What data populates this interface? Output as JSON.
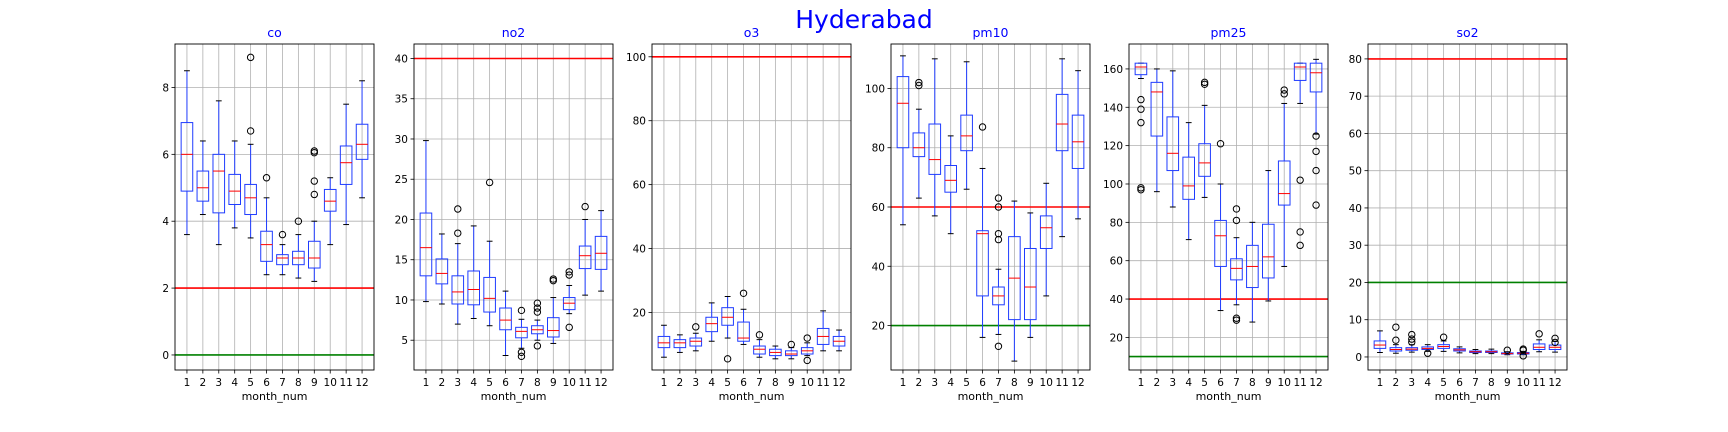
{
  "figure": {
    "suptitle": "Hyderabad",
    "suptitle_color": "#0000ff",
    "title_color": "#0000ff",
    "box_color": "#1f3cff",
    "median_color": "#ff0000",
    "whisker_color": "#1f3cff",
    "grid": true
  },
  "chart_data": [
    {
      "type": "box",
      "title": "co",
      "xlabel": "month_num",
      "ylabel": "",
      "categories": [
        "1",
        "2",
        "3",
        "4",
        "5",
        "6",
        "7",
        "8",
        "9",
        "10",
        "11",
        "12"
      ],
      "ylim": [
        -0.45,
        9.3
      ],
      "yticks": [
        0,
        2,
        4,
        6,
        8
      ],
      "hlines": [
        {
          "y": 2,
          "color": "#ff0000"
        },
        {
          "y": 0,
          "color": "#008000"
        }
      ],
      "boxes": [
        {
          "whislo": 3.6,
          "q1": 4.9,
          "med": 6.0,
          "q3": 6.95,
          "whishi": 8.5,
          "fliers": []
        },
        {
          "whislo": 4.2,
          "q1": 4.6,
          "med": 5.0,
          "q3": 5.5,
          "whishi": 6.4,
          "fliers": []
        },
        {
          "whislo": 3.3,
          "q1": 4.25,
          "med": 5.5,
          "q3": 6.0,
          "whishi": 7.6,
          "fliers": []
        },
        {
          "whislo": 3.8,
          "q1": 4.5,
          "med": 4.9,
          "q3": 5.4,
          "whishi": 6.4,
          "fliers": []
        },
        {
          "whislo": 3.5,
          "q1": 4.2,
          "med": 4.7,
          "q3": 5.1,
          "whishi": 6.3,
          "fliers": [
            8.9,
            6.7
          ]
        },
        {
          "whislo": 2.4,
          "q1": 2.8,
          "med": 3.3,
          "q3": 3.7,
          "whishi": 4.7,
          "fliers": [
            5.3
          ]
        },
        {
          "whislo": 2.4,
          "q1": 2.7,
          "med": 2.9,
          "q3": 3.0,
          "whishi": 3.3,
          "fliers": [
            3.6
          ]
        },
        {
          "whislo": 2.3,
          "q1": 2.7,
          "med": 2.9,
          "q3": 3.1,
          "whishi": 3.6,
          "fliers": [
            4.0
          ]
        },
        {
          "whislo": 2.2,
          "q1": 2.6,
          "med": 2.9,
          "q3": 3.4,
          "whishi": 4.0,
          "fliers": [
            6.1,
            6.05,
            5.2,
            4.8
          ]
        },
        {
          "whislo": 3.3,
          "q1": 4.3,
          "med": 4.6,
          "q3": 4.95,
          "whishi": 5.3,
          "fliers": []
        },
        {
          "whislo": 3.9,
          "q1": 5.1,
          "med": 5.75,
          "q3": 6.25,
          "whishi": 7.5,
          "fliers": []
        },
        {
          "whislo": 4.7,
          "q1": 5.85,
          "med": 6.3,
          "q3": 6.9,
          "whishi": 8.2,
          "fliers": []
        }
      ]
    },
    {
      "type": "box",
      "title": "no2",
      "xlabel": "month_num",
      "ylabel": "",
      "categories": [
        "1",
        "2",
        "3",
        "4",
        "5",
        "6",
        "7",
        "8",
        "9",
        "10",
        "11",
        "12"
      ],
      "ylim": [
        1.3,
        41.8
      ],
      "yticks": [
        5,
        10,
        15,
        20,
        25,
        30,
        35,
        40
      ],
      "hlines": [
        {
          "y": 40,
          "color": "#ff0000"
        }
      ],
      "boxes": [
        {
          "whislo": 9.8,
          "q1": 13.0,
          "med": 16.5,
          "q3": 20.8,
          "whishi": 29.8,
          "fliers": []
        },
        {
          "whislo": 9.5,
          "q1": 12.0,
          "med": 13.3,
          "q3": 15.1,
          "whishi": 18.2,
          "fliers": []
        },
        {
          "whislo": 7.0,
          "q1": 9.5,
          "med": 11.0,
          "q3": 13.0,
          "whishi": 17.0,
          "fliers": [
            21.3,
            18.3
          ]
        },
        {
          "whislo": 7.7,
          "q1": 9.4,
          "med": 11.3,
          "q3": 13.6,
          "whishi": 19.2,
          "fliers": []
        },
        {
          "whislo": 6.8,
          "q1": 8.5,
          "med": 10.2,
          "q3": 12.8,
          "whishi": 17.3,
          "fliers": [
            24.6
          ]
        },
        {
          "whislo": 3.1,
          "q1": 6.3,
          "med": 7.5,
          "q3": 9.0,
          "whishi": 11.1,
          "fliers": []
        },
        {
          "whislo": 4.0,
          "q1": 5.3,
          "med": 6.1,
          "q3": 6.6,
          "whishi": 7.6,
          "fliers": [
            8.7,
            3.5,
            3.0
          ]
        },
        {
          "whislo": 5.0,
          "q1": 5.8,
          "med": 6.3,
          "q3": 6.8,
          "whishi": 7.5,
          "fliers": [
            9.6,
            9.0,
            8.5,
            4.3
          ]
        },
        {
          "whislo": 4.6,
          "q1": 5.4,
          "med": 6.2,
          "q3": 7.8,
          "whishi": 10.3,
          "fliers": [
            12.6,
            12.4
          ]
        },
        {
          "whislo": 8.3,
          "q1": 8.8,
          "med": 9.6,
          "q3": 10.3,
          "whishi": 11.8,
          "fliers": [
            13.5,
            13.1,
            6.6
          ]
        },
        {
          "whislo": 10.6,
          "q1": 13.9,
          "med": 15.5,
          "q3": 16.7,
          "whishi": 20.0,
          "fliers": [
            21.6
          ]
        },
        {
          "whislo": 11.1,
          "q1": 13.8,
          "med": 15.8,
          "q3": 17.9,
          "whishi": 21.1,
          "fliers": []
        }
      ]
    },
    {
      "type": "box",
      "title": "o3",
      "xlabel": "month_num",
      "ylabel": "",
      "categories": [
        "1",
        "2",
        "3",
        "4",
        "5",
        "6",
        "7",
        "8",
        "9",
        "10",
        "11",
        "12"
      ],
      "ylim": [
        2.0,
        104.0
      ],
      "yticks": [
        20,
        40,
        60,
        80,
        100
      ],
      "hlines": [
        {
          "y": 100,
          "color": "#ff0000"
        }
      ],
      "boxes": [
        {
          "whislo": 6.0,
          "q1": 9.0,
          "med": 10.5,
          "q3": 12.5,
          "whishi": 16.0,
          "fliers": []
        },
        {
          "whislo": 7.5,
          "q1": 9.0,
          "med": 10.5,
          "q3": 11.5,
          "whishi": 13.0,
          "fliers": []
        },
        {
          "whislo": 8.0,
          "q1": 9.5,
          "med": 11.0,
          "q3": 12.0,
          "whishi": 13.5,
          "fliers": [
            15.5
          ]
        },
        {
          "whislo": 11.0,
          "q1": 14.0,
          "med": 16.5,
          "q3": 18.5,
          "whishi": 23.0,
          "fliers": []
        },
        {
          "whislo": 12.0,
          "q1": 16.0,
          "med": 18.5,
          "q3": 21.5,
          "whishi": 25.0,
          "fliers": [
            5.5
          ]
        },
        {
          "whislo": 10.0,
          "q1": 11.0,
          "med": 12.0,
          "q3": 17.0,
          "whishi": 21.0,
          "fliers": [
            26.0
          ]
        },
        {
          "whislo": 6.0,
          "q1": 7.0,
          "med": 8.5,
          "q3": 9.5,
          "whishi": 11.5,
          "fliers": [
            13.0
          ]
        },
        {
          "whislo": 5.5,
          "q1": 6.5,
          "med": 7.5,
          "q3": 8.5,
          "whishi": 9.5,
          "fliers": []
        },
        {
          "whislo": 5.5,
          "q1": 6.5,
          "med": 7.0,
          "q3": 8.0,
          "whishi": 9.0,
          "fliers": [
            10.0
          ]
        },
        {
          "whislo": 6.5,
          "q1": 7.0,
          "med": 8.0,
          "q3": 9.0,
          "whishi": 10.5,
          "fliers": [
            12.0,
            5.0
          ]
        },
        {
          "whislo": 8.0,
          "q1": 10.0,
          "med": 12.5,
          "q3": 15.0,
          "whishi": 20.5,
          "fliers": []
        },
        {
          "whislo": 8.0,
          "q1": 9.5,
          "med": 11.0,
          "q3": 12.5,
          "whishi": 14.5,
          "fliers": []
        }
      ]
    },
    {
      "type": "box",
      "title": "pm10",
      "xlabel": "month_num",
      "ylabel": "",
      "categories": [
        "1",
        "2",
        "3",
        "4",
        "5",
        "6",
        "7",
        "8",
        "9",
        "10",
        "11",
        "12"
      ],
      "ylim": [
        5.0,
        115.0
      ],
      "yticks": [
        20,
        40,
        60,
        80,
        100
      ],
      "hlines": [
        {
          "y": 60,
          "color": "#ff0000"
        },
        {
          "y": 20,
          "color": "#008000"
        }
      ],
      "boxes": [
        {
          "whislo": 54,
          "q1": 80,
          "med": 95,
          "q3": 104,
          "whishi": 111,
          "fliers": []
        },
        {
          "whislo": 63,
          "q1": 77,
          "med": 80,
          "q3": 85,
          "whishi": 93,
          "fliers": [
            102,
            101
          ]
        },
        {
          "whislo": 57,
          "q1": 71,
          "med": 76,
          "q3": 88,
          "whishi": 110,
          "fliers": []
        },
        {
          "whislo": 51,
          "q1": 65,
          "med": 69,
          "q3": 74,
          "whishi": 84,
          "fliers": []
        },
        {
          "whislo": 66,
          "q1": 79,
          "med": 84,
          "q3": 91,
          "whishi": 109,
          "fliers": []
        },
        {
          "whislo": 16,
          "q1": 30,
          "med": 51,
          "q3": 52,
          "whishi": 73,
          "fliers": [
            87
          ]
        },
        {
          "whislo": 17,
          "q1": 27,
          "med": 30,
          "q3": 33,
          "whishi": 39,
          "fliers": [
            63,
            60,
            51,
            49,
            13
          ]
        },
        {
          "whislo": 8,
          "q1": 22,
          "med": 36,
          "q3": 50,
          "whishi": 62,
          "fliers": []
        },
        {
          "whislo": 16,
          "q1": 22,
          "med": 33,
          "q3": 46,
          "whishi": 58,
          "fliers": []
        },
        {
          "whislo": 30,
          "q1": 46,
          "med": 53,
          "q3": 57,
          "whishi": 68,
          "fliers": []
        },
        {
          "whislo": 50,
          "q1": 79,
          "med": 88,
          "q3": 98,
          "whishi": 110,
          "fliers": []
        },
        {
          "whislo": 56,
          "q1": 73,
          "med": 82,
          "q3": 91,
          "whishi": 106,
          "fliers": []
        }
      ]
    },
    {
      "type": "box",
      "title": "pm25",
      "xlabel": "month_num",
      "ylabel": "",
      "categories": [
        "1",
        "2",
        "3",
        "4",
        "5",
        "6",
        "7",
        "8",
        "9",
        "10",
        "11",
        "12"
      ],
      "ylim": [
        3.0,
        173.0
      ],
      "yticks": [
        20,
        40,
        60,
        80,
        100,
        120,
        140,
        160
      ],
      "hlines": [
        {
          "y": 40,
          "color": "#ff0000"
        },
        {
          "y": 10,
          "color": "#008000"
        }
      ],
      "boxes": [
        {
          "whislo": 155,
          "q1": 157,
          "med": 161,
          "q3": 163,
          "whishi": 163,
          "fliers": [
            144,
            139,
            132,
            98,
            97
          ]
        },
        {
          "whislo": 96,
          "q1": 125,
          "med": 148,
          "q3": 153,
          "whishi": 160,
          "fliers": []
        },
        {
          "whislo": 88,
          "q1": 107,
          "med": 116,
          "q3": 135,
          "whishi": 159,
          "fliers": []
        },
        {
          "whislo": 71,
          "q1": 92,
          "med": 99,
          "q3": 114,
          "whishi": 132,
          "fliers": []
        },
        {
          "whislo": 93,
          "q1": 104,
          "med": 111,
          "q3": 121,
          "whishi": 141,
          "fliers": [
            153,
            152
          ]
        },
        {
          "whislo": 34,
          "q1": 57,
          "med": 73,
          "q3": 81,
          "whishi": 100,
          "fliers": [
            121
          ]
        },
        {
          "whislo": 37,
          "q1": 50,
          "med": 56,
          "q3": 61,
          "whishi": 72,
          "fliers": [
            87,
            81,
            30,
            29
          ]
        },
        {
          "whislo": 28,
          "q1": 46,
          "med": 57,
          "q3": 68,
          "whishi": 80,
          "fliers": []
        },
        {
          "whislo": 39,
          "q1": 51,
          "med": 62,
          "q3": 79,
          "whishi": 107,
          "fliers": []
        },
        {
          "whislo": 57,
          "q1": 89,
          "med": 95,
          "q3": 112,
          "whishi": 142,
          "fliers": [
            149,
            147
          ]
        },
        {
          "whislo": 142,
          "q1": 154,
          "med": 161,
          "q3": 163,
          "whishi": 163,
          "fliers": [
            102,
            75,
            68
          ]
        },
        {
          "whislo": 126,
          "q1": 148,
          "med": 158,
          "q3": 163,
          "whishi": 165,
          "fliers": [
            125,
            117,
            107,
            89
          ]
        }
      ]
    },
    {
      "type": "box",
      "title": "so2",
      "xlabel": "month_num",
      "ylabel": "",
      "categories": [
        "1",
        "2",
        "3",
        "4",
        "5",
        "6",
        "7",
        "8",
        "9",
        "10",
        "11",
        "12"
      ],
      "ylim": [
        -3.5,
        84.0
      ],
      "yticks": [
        0,
        10,
        20,
        30,
        40,
        50,
        60,
        70,
        80
      ],
      "hlines": [
        {
          "y": 80,
          "color": "#ff0000"
        },
        {
          "y": 20,
          "color": "#008000"
        }
      ],
      "boxes": [
        {
          "whislo": 1.2,
          "q1": 2.3,
          "med": 3.2,
          "q3": 4.3,
          "whishi": 7.0,
          "fliers": []
        },
        {
          "whislo": 1.0,
          "q1": 1.6,
          "med": 2.0,
          "q3": 2.5,
          "whishi": 3.3,
          "fliers": [
            8.0,
            4.5
          ]
        },
        {
          "whislo": 1.3,
          "q1": 1.8,
          "med": 2.1,
          "q3": 2.5,
          "whishi": 3.3,
          "fliers": [
            6.0,
            4.8,
            4.0
          ]
        },
        {
          "whislo": 1.5,
          "q1": 2.0,
          "med": 2.3,
          "q3": 2.7,
          "whishi": 3.3,
          "fliers": [
            1.0
          ]
        },
        {
          "whislo": 1.5,
          "q1": 2.3,
          "med": 2.8,
          "q3": 3.3,
          "whishi": 4.3,
          "fliers": [
            5.3
          ]
        },
        {
          "whislo": 1.1,
          "q1": 1.6,
          "med": 1.9,
          "q3": 2.2,
          "whishi": 2.7,
          "fliers": []
        },
        {
          "whislo": 0.9,
          "q1": 1.2,
          "med": 1.4,
          "q3": 1.6,
          "whishi": 2.0,
          "fliers": []
        },
        {
          "whislo": 0.9,
          "q1": 1.2,
          "med": 1.4,
          "q3": 1.6,
          "whishi": 2.1,
          "fliers": []
        },
        {
          "whislo": 0.6,
          "q1": 0.8,
          "med": 0.9,
          "q3": 1.1,
          "whishi": 1.4,
          "fliers": [
            1.8
          ]
        },
        {
          "whislo": 0.6,
          "q1": 0.8,
          "med": 1.0,
          "q3": 1.2,
          "whishi": 1.5,
          "fliers": [
            2.1,
            1.8,
            0.3
          ]
        },
        {
          "whislo": 1.4,
          "q1": 2.0,
          "med": 2.6,
          "q3": 3.5,
          "whishi": 4.6,
          "fliers": [
            6.2
          ]
        },
        {
          "whislo": 1.3,
          "q1": 2.0,
          "med": 2.6,
          "q3": 3.2,
          "whishi": 4.2,
          "fliers": [
            5.0,
            3.9
          ]
        }
      ]
    }
  ]
}
